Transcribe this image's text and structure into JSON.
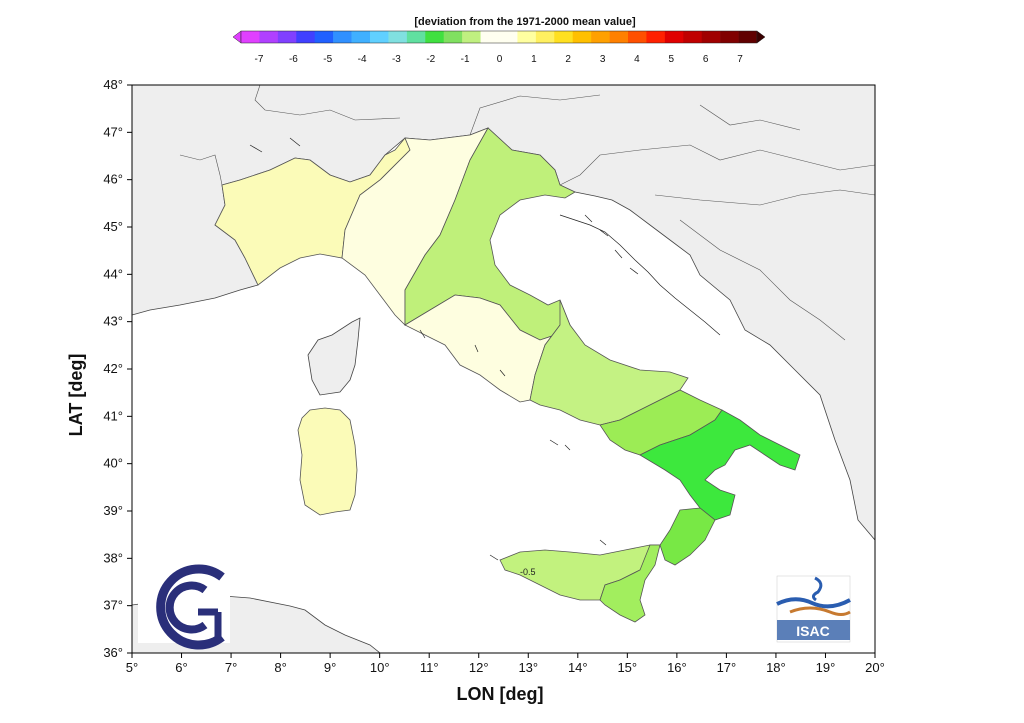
{
  "colorbar": {
    "title": "[deviation from the 1971-2000 mean value]",
    "ticks": [
      "-7",
      "-6",
      "-5",
      "-4",
      "-3",
      "-2",
      "-1",
      "0",
      "1",
      "2",
      "3",
      "4",
      "5",
      "6",
      "7"
    ],
    "colors": [
      "#e040ff",
      "#b040ff",
      "#8040ff",
      "#4040ff",
      "#2060ff",
      "#3090ff",
      "#40b0ff",
      "#60d0ff",
      "#80e0e0",
      "#60e0a0",
      "#40e040",
      "#80e060",
      "#c0f080",
      "#fffff0",
      "#fffff0",
      "#ffffa0",
      "#fff060",
      "#ffe020",
      "#ffc000",
      "#ffa000",
      "#ff8000",
      "#ff5000",
      "#ff2000",
      "#e00000",
      "#c00000",
      "#a00000",
      "#800000",
      "#600000"
    ]
  },
  "map": {
    "lon_label": "LON [deg]",
    "lat_label": "LAT [deg]",
    "lon_ticks": [
      "5°",
      "6°",
      "7°",
      "8°",
      "9°",
      "10°",
      "11°",
      "12°",
      "13°",
      "14°",
      "15°",
      "16°",
      "17°",
      "18°",
      "19°",
      "20°"
    ],
    "lat_ticks": [
      "48°",
      "47°",
      "46°",
      "45°",
      "44°",
      "43°",
      "42°",
      "41°",
      "40°",
      "39°",
      "38°",
      "37°",
      "36°"
    ],
    "lon_range": [
      5,
      20
    ],
    "lat_range": [
      36,
      48
    ],
    "land_color": "#eeeeee",
    "sea_color": "#ffffff",
    "contour_label": "-0.5",
    "regions": [
      {
        "name": "north-west",
        "value": 0.75,
        "color": "#fbfbb8"
      },
      {
        "name": "north-central",
        "value": 0.25,
        "color": "#fefee0"
      },
      {
        "name": "north-east",
        "value": -0.75,
        "color": "#bff07a"
      },
      {
        "name": "central-west",
        "value": 0.25,
        "color": "#fefee0"
      },
      {
        "name": "central-east",
        "value": -0.75,
        "color": "#c4f283"
      },
      {
        "name": "campania",
        "value": -1.0,
        "color": "#9cec55"
      },
      {
        "name": "puglia-basilicata",
        "value": -1.5,
        "color": "#3de83d"
      },
      {
        "name": "calabria",
        "value": -1.25,
        "color": "#78e845"
      },
      {
        "name": "sicily-west",
        "value": -0.75,
        "color": "#c2f27e"
      },
      {
        "name": "sicily-east",
        "value": -1.0,
        "color": "#a2ee5e"
      },
      {
        "name": "sardinia",
        "value": 0.75,
        "color": "#fbfbb8"
      }
    ]
  },
  "logos": {
    "isac_text": "ISAC"
  }
}
